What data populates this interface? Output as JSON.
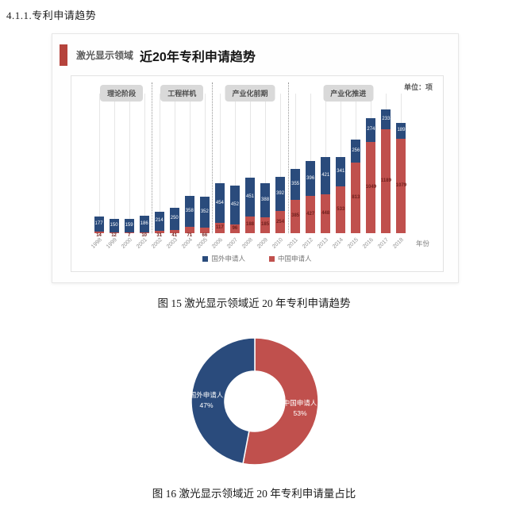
{
  "page": {
    "heading": "4.1.1.专利申请趋势",
    "caption_bar_chart": "图 15  激光显示领域近 20 年专利申请趋势",
    "caption_donut_chart": "图 16  激光显示领域近 20 年专利申请量占比"
  },
  "bar_panel": {
    "header_label": "激光显示领域",
    "header_title": "近20年专利申请趋势",
    "accent_color": "#b5433c",
    "unit_label": "单位：项",
    "axis_right_label": "年份",
    "legend": [
      {
        "label": "国外申请人",
        "color": "#2a4b7c"
      },
      {
        "label": "中国申请人",
        "color": "#c0504d"
      }
    ]
  },
  "chart_data": [
    {
      "type": "bar",
      "stacked": true,
      "title": "激光显示领域 近20年专利申请趋势",
      "unit": "项",
      "xlabel": "年份",
      "ylabel": "",
      "ylim": [
        0,
        1600
      ],
      "grid": "vertical",
      "legend_position": "bottom",
      "categories": [
        "1998",
        "1999",
        "2000",
        "2001",
        "2002",
        "2003",
        "2004",
        "2005",
        "2006",
        "2007",
        "2008",
        "2009",
        "2010",
        "2011",
        "2012",
        "2013",
        "2014",
        "2015",
        "2016",
        "2017",
        "2018"
      ],
      "series": [
        {
          "name": "中国申请人",
          "color": "#c0504d",
          "label_color": "#6e1f1c",
          "values": [
            14,
            12,
            7,
            10,
            31,
            41,
            71,
            66,
            117,
            96,
            188,
            185,
            254,
            385,
            427,
            448,
            533,
            813,
            1049,
            1189,
            1079
          ]
        },
        {
          "name": "国外申请人",
          "color": "#2a4b7c",
          "label_color": "#ffffff",
          "values": [
            177,
            150,
            159,
            186,
            214,
            250,
            358,
            352,
            454,
            452,
            451,
            388,
            392,
            355,
            396,
            421,
            341,
            256,
            274,
            233,
            189
          ]
        }
      ],
      "stages": [
        {
          "label": "理论阶段",
          "from": "1998",
          "to": "2001"
        },
        {
          "label": "工程样机",
          "from": "2002",
          "to": "2005"
        },
        {
          "label": "产业化前期",
          "from": "2006",
          "to": "2010"
        },
        {
          "label": "产业化推进",
          "from": "2011",
          "to": "2018"
        }
      ]
    },
    {
      "type": "pie",
      "title": "激光显示领域近 20 年专利申请量占比",
      "donut": true,
      "slices": [
        {
          "label": "中国申请人",
          "percent": 53,
          "percent_label": "53%",
          "color": "#c0504d"
        },
        {
          "label": "国外申请人",
          "percent": 47,
          "percent_label": "47%",
          "color": "#2a4b7c"
        }
      ]
    }
  ]
}
